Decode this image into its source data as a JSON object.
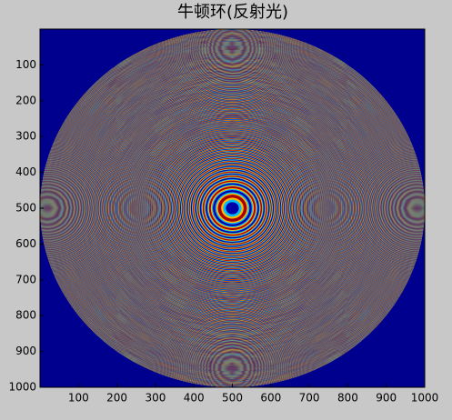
{
  "chart_data": {
    "type": "image",
    "title": "牛顿环(反射光)",
    "xlim": [
      0,
      1000
    ],
    "ylim": [
      1000,
      0
    ],
    "xticks": [
      100,
      200,
      300,
      400,
      500,
      600,
      700,
      800,
      900,
      1000
    ],
    "yticks": [
      100,
      200,
      300,
      400,
      500,
      600,
      700,
      800,
      900,
      1000
    ],
    "colormap": "jet"
  }
}
